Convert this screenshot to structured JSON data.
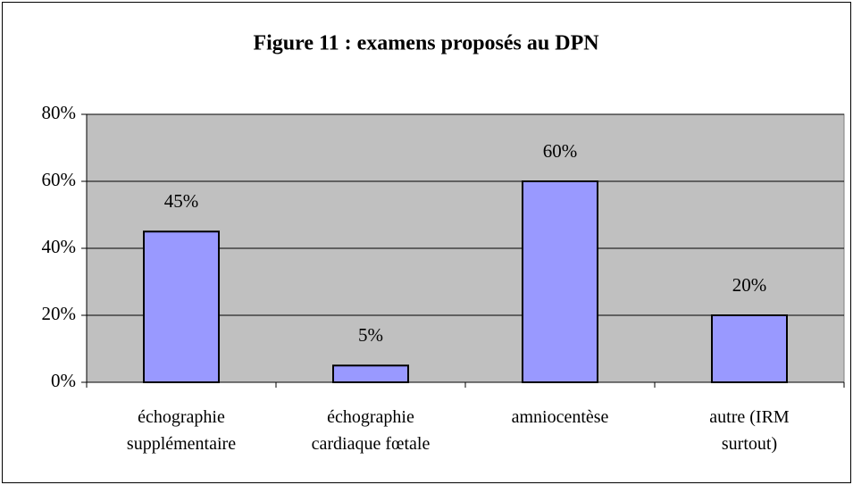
{
  "chart_data": {
    "type": "bar",
    "title": "Figure 11 : examens proposés au DPN",
    "categories": [
      "échographie\nsupplémentaire",
      "échographie\ncardiaque fœtale",
      "amniocentèse",
      "autre (IRM\nsurtout)"
    ],
    "values": [
      45,
      5,
      60,
      20
    ],
    "value_labels": [
      "45%",
      "5%",
      "60%",
      "20%"
    ],
    "color": "#9999ff",
    "ylim": [
      0,
      80
    ],
    "yticks": [
      {
        "value": 0,
        "label": "0%"
      },
      {
        "value": 20,
        "label": "20%"
      },
      {
        "value": 40,
        "label": "40%"
      },
      {
        "value": 60,
        "label": "60%"
      },
      {
        "value": 80,
        "label": "80%"
      }
    ],
    "grid": true
  }
}
